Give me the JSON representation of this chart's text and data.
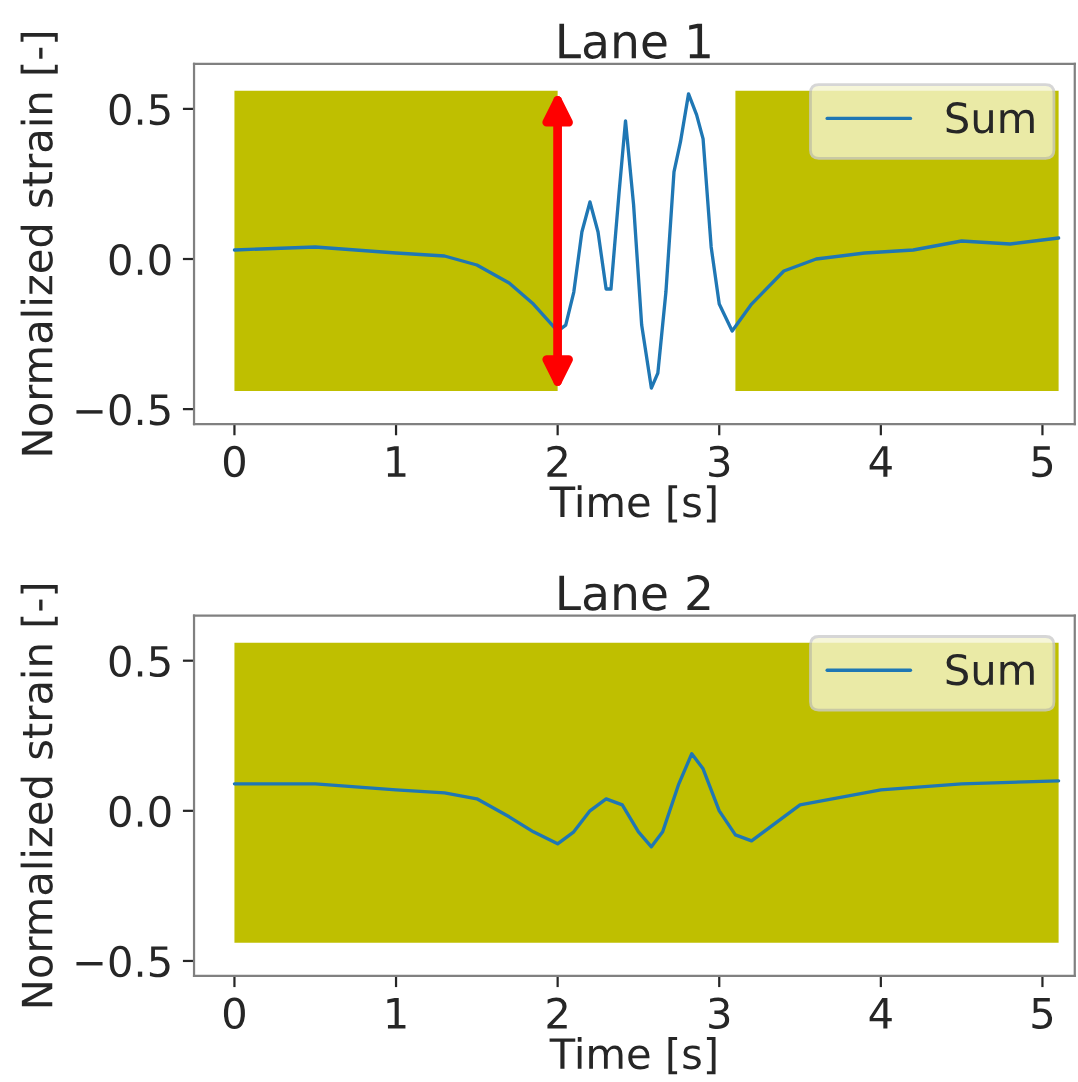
{
  "chart_data": [
    {
      "type": "line",
      "title": "Lane 1",
      "xlabel": "Time [s]",
      "ylabel": "Normalized strain [-]",
      "xlim": [
        -0.25,
        5.2
      ],
      "ylim": [
        -0.55,
        0.65
      ],
      "xticks": [
        0,
        1,
        2,
        3,
        4,
        5
      ],
      "yticks": [
        {
          "value": -0.5,
          "label": "−0.5"
        },
        {
          "value": 0,
          "label": "0.0"
        },
        {
          "value": 0.5,
          "label": "0.5"
        }
      ],
      "grid": false,
      "legend": "top right",
      "marker": "none",
      "line_style": "solid",
      "bands": [
        {
          "axis": "x",
          "from": 0,
          "to": 2.0,
          "color": "#bfbf00"
        },
        {
          "axis": "x",
          "from": 3.1,
          "to": 5.1,
          "color": "#bfbf00"
        }
      ],
      "ref_lines": [
        {
          "axis": "x",
          "value": 2.0,
          "color": "#ff0000"
        }
      ],
      "series": [
        {
          "name": "Sum",
          "color": "#1f77b4",
          "x": [
            0,
            0.5,
            1,
            1.3,
            1.5,
            1.7,
            1.85,
            2.0,
            2.05,
            2.1,
            2.15,
            2.2,
            2.25,
            2.3,
            2.33,
            2.38,
            2.42,
            2.47,
            2.52,
            2.58,
            2.62,
            2.67,
            2.72,
            2.76,
            2.81,
            2.86,
            2.9,
            2.95,
            3.0,
            3.08,
            3.2,
            3.4,
            3.6,
            3.9,
            4.2,
            4.5,
            4.8,
            5.1
          ],
          "values": [
            0.03,
            0.04,
            0.02,
            0.01,
            -0.02,
            -0.08,
            -0.15,
            -0.24,
            -0.22,
            -0.11,
            0.09,
            0.19,
            0.09,
            -0.1,
            -0.1,
            0.22,
            0.46,
            0.18,
            -0.22,
            -0.43,
            -0.38,
            -0.11,
            0.29,
            0.39,
            0.55,
            0.48,
            0.4,
            0.04,
            -0.15,
            -0.24,
            -0.15,
            -0.04,
            0.0,
            0.02,
            0.03,
            0.06,
            0.05,
            0.07
          ]
        }
      ]
    },
    {
      "type": "line",
      "title": "Lane 2",
      "xlabel": "Time [s]",
      "ylabel": "Normalized strain [-]",
      "xlim": [
        -0.25,
        5.2
      ],
      "ylim": [
        -0.55,
        0.65
      ],
      "xticks": [
        0,
        1,
        2,
        3,
        4,
        5
      ],
      "yticks": [
        {
          "value": -0.5,
          "label": "−0.5"
        },
        {
          "value": 0,
          "label": "0.0"
        },
        {
          "value": 0.5,
          "label": "0.5"
        }
      ],
      "grid": false,
      "legend": "top right",
      "marker": "none",
      "line_style": "solid",
      "bands": [
        {
          "axis": "x",
          "from": 0,
          "to": 5.1,
          "color": "#bfbf00"
        }
      ],
      "series": [
        {
          "name": "Sum",
          "color": "#1f77b4",
          "x": [
            0,
            0.5,
            1,
            1.3,
            1.5,
            1.7,
            1.85,
            2.0,
            2.1,
            2.2,
            2.3,
            2.4,
            2.5,
            2.58,
            2.65,
            2.75,
            2.83,
            2.9,
            3.0,
            3.1,
            3.2,
            3.35,
            3.5,
            3.8,
            4.0,
            4.5,
            5.1
          ],
          "values": [
            0.09,
            0.09,
            0.07,
            0.06,
            0.04,
            -0.02,
            -0.07,
            -0.11,
            -0.07,
            0.0,
            0.04,
            0.02,
            -0.07,
            -0.12,
            -0.07,
            0.09,
            0.19,
            0.14,
            0.0,
            -0.08,
            -0.1,
            -0.04,
            0.02,
            0.05,
            0.07,
            0.09,
            0.1
          ]
        }
      ]
    }
  ]
}
